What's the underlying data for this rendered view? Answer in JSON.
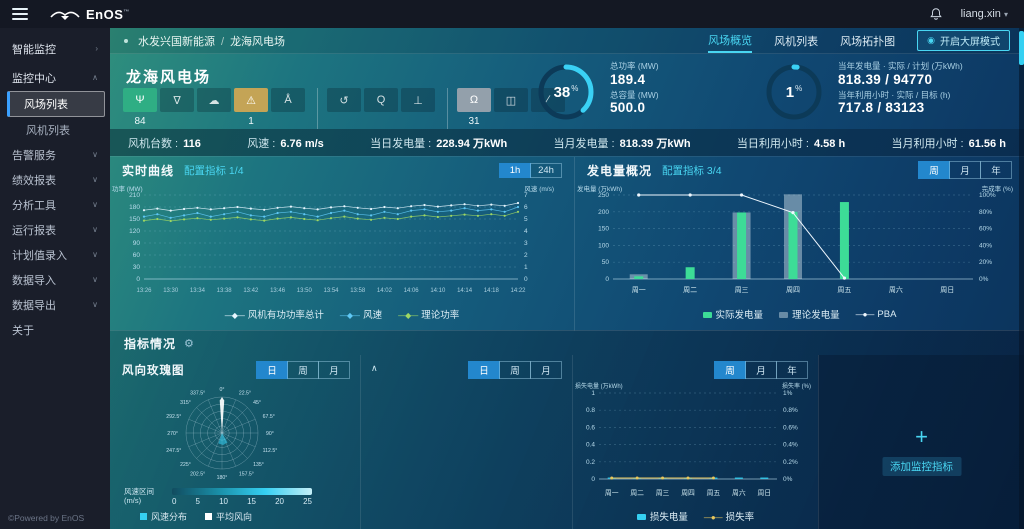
{
  "topbar": {
    "brand": "EnOS",
    "tm": "™",
    "user": "liang.xin"
  },
  "sidebar": {
    "items": [
      {
        "label": "智能监控",
        "chevron": "›",
        "type": "root",
        "active": false
      },
      {
        "label": "监控中心",
        "chevron": "∧",
        "type": "group",
        "active": false
      },
      {
        "label": "风场列表",
        "chevron": "",
        "type": "child",
        "active": true
      },
      {
        "label": "风机列表",
        "chevron": "",
        "type": "child",
        "active": false
      },
      {
        "label": "告警服务",
        "chevron": "∨",
        "type": "item",
        "active": false
      },
      {
        "label": "绩效报表",
        "chevron": "∨",
        "type": "item",
        "active": false
      },
      {
        "label": "分析工具",
        "chevron": "∨",
        "type": "item",
        "active": false
      },
      {
        "label": "运行报表",
        "chevron": "∨",
        "type": "item",
        "active": false
      },
      {
        "label": "计划值录入",
        "chevron": "∨",
        "type": "item",
        "active": false
      },
      {
        "label": "数据导入",
        "chevron": "∨",
        "type": "item",
        "active": false
      },
      {
        "label": "数据导出",
        "chevron": "∨",
        "type": "item",
        "active": false
      },
      {
        "label": "关于",
        "chevron": "",
        "type": "item",
        "active": false
      }
    ],
    "footer": "©Powered by EnOS"
  },
  "breadcrumb": {
    "parent": "水发兴国新能源",
    "separator": "/",
    "current": "龙海风电场"
  },
  "tabs": [
    {
      "label": "风场概览",
      "active": true
    },
    {
      "label": "风机列表",
      "active": false
    },
    {
      "label": "风场拓扑图",
      "active": false
    }
  ],
  "mode_button": {
    "label": "开启大屏模式"
  },
  "farm": {
    "title": "龙海风电场",
    "turbine_states": [
      {
        "name": "running",
        "glyph": "Ψ",
        "count": "84",
        "style": "green",
        "sep": false
      },
      {
        "name": "standby",
        "glyph": "∇",
        "count": "",
        "style": "",
        "sep": false
      },
      {
        "name": "weather",
        "glyph": "☁",
        "count": "",
        "style": "",
        "sep": false
      },
      {
        "name": "warning",
        "glyph": "⚠",
        "count": "1",
        "style": "amber",
        "sep": false
      },
      {
        "name": "derated",
        "glyph": "Å",
        "count": "",
        "style": "",
        "sep": false
      },
      {
        "name": "restarting",
        "glyph": "↺",
        "count": "",
        "style": "",
        "sep": true
      },
      {
        "name": "inspecting",
        "glyph": "Q",
        "count": "",
        "style": "",
        "sep": false
      },
      {
        "name": "stopped",
        "glyph": "⊥",
        "count": "",
        "style": "",
        "sep": false
      },
      {
        "name": "offline",
        "glyph": "Ω",
        "count": "31",
        "style": "gray",
        "sep": true
      },
      {
        "name": "no-connection",
        "glyph": "◫",
        "count": "",
        "style": "",
        "sep": false
      },
      {
        "name": "maintenance",
        "glyph": "∕",
        "count": "",
        "style": "",
        "sep": false
      }
    ],
    "gauge_power": {
      "percent": "38",
      "unit": "%",
      "rows": [
        {
          "label": "总功率 (MW)",
          "value": "189.4"
        },
        {
          "label": "总容量 (MW)",
          "value": "500.0"
        }
      ]
    },
    "gauge_plan": {
      "percent": "1",
      "unit": "%",
      "rows": [
        {
          "label": "当年发电量 · 实际 / 计划 (万kWh)",
          "value": "818.39 / 94770"
        },
        {
          "label": "当年利用小时 · 实际 / 目标 (h)",
          "value": "717.8 / 83123"
        }
      ]
    },
    "stats": [
      {
        "label": "风机台数",
        "value": "116"
      },
      {
        "label": "风速",
        "value": "6.76 m/s"
      },
      {
        "label": "当日发电量",
        "value": "228.94 万kWh"
      },
      {
        "label": "当月发电量",
        "value": "818.39 万kWh"
      },
      {
        "label": "当日利用小时",
        "value": "4.58 h"
      },
      {
        "label": "当月利用小时",
        "value": "61.56 h"
      }
    ]
  },
  "panels": {
    "realtime": {
      "title": "实时曲线",
      "config": "配置指标 1/4",
      "toggles": [
        {
          "label": "1h",
          "active": true
        },
        {
          "label": "24h",
          "active": false
        }
      ]
    },
    "energy": {
      "title": "发电量概况",
      "config": "配置指标 3/4",
      "toggles": [
        {
          "label": "周",
          "active": true
        },
        {
          "label": "月",
          "active": false
        },
        {
          "label": "年",
          "active": false
        }
      ]
    },
    "indicators_title": "指标情况",
    "rose": {
      "title": "风向玫瑰图",
      "scale_label": "风速区间",
      "scale_unit": "(m/s)",
      "toggles": [
        {
          "label": "日",
          "active": true
        },
        {
          "label": "周",
          "active": false
        },
        {
          "label": "月",
          "active": false
        }
      ]
    },
    "panel2": {
      "collapse_icon": "∧",
      "toggles": [
        {
          "label": "日",
          "active": true
        },
        {
          "label": "周",
          "active": false
        },
        {
          "label": "月",
          "active": false
        }
      ]
    },
    "loss": {
      "toggles": [
        {
          "label": "周",
          "active": true
        },
        {
          "label": "月",
          "active": false
        },
        {
          "label": "年",
          "active": false
        }
      ]
    },
    "add_card": {
      "label": "添加监控指标",
      "plus": "+"
    }
  },
  "colors": {
    "accent": "#49d6f2",
    "gauge": "#3ad1f5",
    "actual_bar": "#3ddc97",
    "theory_bar": "rgba(228,240,246,0.42)",
    "loss_bar": "#35d0f2",
    "loss_line": "#e9c65b",
    "tab_active": "#49d6f2"
  },
  "chart_data": [
    {
      "id": "realtime_curve",
      "type": "line",
      "title": "实时曲线",
      "ylabel_left": "功率 (MW)",
      "ylabel_right": "风速 (m/s)",
      "ylim_left": [
        0,
        210
      ],
      "ytick_step_left": 30,
      "ylim_right": [
        0,
        7
      ],
      "ytick_step_right": 1,
      "grid": true,
      "legend_position": "bottom",
      "x_labels": [
        "13:26",
        "13:30",
        "13:34",
        "13:38",
        "13:42",
        "13:46",
        "13:50",
        "13:54",
        "13:58",
        "14:02",
        "14:06",
        "14:10",
        "14:14",
        "14:18",
        "14:22"
      ],
      "series": [
        {
          "name": "风机有功功率总计",
          "axis": "left",
          "color": "#e8f7ff",
          "values": [
            172,
            176,
            171,
            175,
            178,
            174,
            177,
            180,
            176,
            173,
            178,
            181,
            177,
            174,
            179,
            182,
            178,
            175,
            180,
            177,
            182,
            185,
            181,
            184,
            187,
            183,
            186,
            183,
            190
          ]
        },
        {
          "name": "风速",
          "axis": "right",
          "color": "#5fc8f5",
          "values": [
            5.2,
            5.4,
            5.1,
            5.3,
            5.5,
            5.2,
            5.4,
            5.6,
            5.3,
            5.2,
            5.5,
            5.6,
            5.4,
            5.2,
            5.5,
            5.7,
            5.4,
            5.3,
            5.6,
            5.4,
            5.7,
            5.8,
            5.6,
            5.7,
            5.9,
            5.7,
            5.8,
            5.6,
            6.0
          ]
        },
        {
          "name": "理论功率",
          "axis": "left",
          "color": "#9ed763",
          "values": [
            146,
            150,
            145,
            149,
            152,
            148,
            151,
            154,
            149,
            146,
            151,
            154,
            150,
            147,
            152,
            156,
            151,
            148,
            153,
            150,
            156,
            159,
            155,
            158,
            161,
            158,
            162,
            158,
            168
          ]
        }
      ]
    },
    {
      "id": "energy_overview",
      "type": "bar",
      "title": "发电量概况",
      "ylabel_left": "发电量 (万kWh)",
      "ylabel_right": "完成率 (%)",
      "ylim_left": [
        0,
        250
      ],
      "ylim_right": [
        0,
        100
      ],
      "right_tick_labels": [
        "0%",
        "20%",
        "40%",
        "60%",
        "80%",
        "100%"
      ],
      "grid": true,
      "legend_position": "bottom",
      "categories": [
        "周一",
        "周二",
        "周三",
        "周四",
        "周五",
        "周六",
        "周日"
      ],
      "series": [
        {
          "name": "实际发电量",
          "type": "bar",
          "color": "#3ddc97",
          "values": [
            8,
            35,
            198,
            200,
            229,
            0,
            0
          ]
        },
        {
          "name": "理论发电量",
          "type": "bar",
          "color": "rgba(228,240,246,0.42)",
          "values": [
            14,
            0,
            198,
            252,
            0,
            0,
            0
          ]
        },
        {
          "name": "PBA",
          "type": "line",
          "axis": "right",
          "color": "#f0f8ff",
          "values": [
            100,
            100,
            100,
            79,
            1,
            null,
            null
          ]
        }
      ]
    },
    {
      "id": "wind_rose",
      "type": "rose",
      "title": "风向玫瑰图",
      "rings": 5,
      "angle_labels": [
        "0°",
        "22.5°",
        "45°",
        "67.5°",
        "90°",
        "112.5°",
        "135°",
        "157.5°",
        "180°",
        "202.5°",
        "225°",
        "247.5°",
        "270°",
        "292.5°",
        "315°",
        "337.5°"
      ],
      "directions_deg": [
        0,
        22.5,
        45,
        67.5,
        90,
        112.5,
        135,
        157.5,
        180,
        202.5,
        225,
        247.5,
        270,
        292.5,
        315,
        337.5
      ],
      "values_pct": [
        100,
        8,
        5,
        4,
        6,
        3,
        4,
        5,
        10,
        6,
        4,
        3,
        5,
        4,
        6,
        9
      ],
      "scale": {
        "label": "风速区间 (m/s)",
        "ticks": [
          "0",
          "5",
          "10",
          "15",
          "20",
          "25"
        ]
      },
      "legend": [
        {
          "name": "风速分布",
          "color": "#35d0f2"
        },
        {
          "name": "平均风向",
          "color": "#ffffff"
        }
      ]
    },
    {
      "id": "loss_overview",
      "type": "bar",
      "ylabel_left": "损失电量 (万kWh)",
      "ylabel_right": "损失率 (%)",
      "ylim_left": [
        0,
        1
      ],
      "ylim_right": [
        0,
        1
      ],
      "left_tick_labels": [
        "0",
        "0.2",
        "0.4",
        "0.6",
        "0.8",
        "1"
      ],
      "right_tick_labels": [
        "0%",
        "0.2%",
        "0.4%",
        "0.6%",
        "0.8%",
        "1%"
      ],
      "grid": true,
      "legend_position": "bottom",
      "categories": [
        "周一",
        "周二",
        "周三",
        "周四",
        "周五",
        "周六",
        "周日"
      ],
      "series": [
        {
          "name": "损失电量",
          "type": "bar",
          "color": "#35d0f2",
          "values": [
            0,
            0,
            0,
            0,
            0,
            0,
            0
          ]
        },
        {
          "name": "损失率",
          "type": "line",
          "color": "#e9c65b",
          "values": [
            0,
            0,
            0,
            0,
            0,
            null,
            null
          ]
        }
      ]
    }
  ]
}
